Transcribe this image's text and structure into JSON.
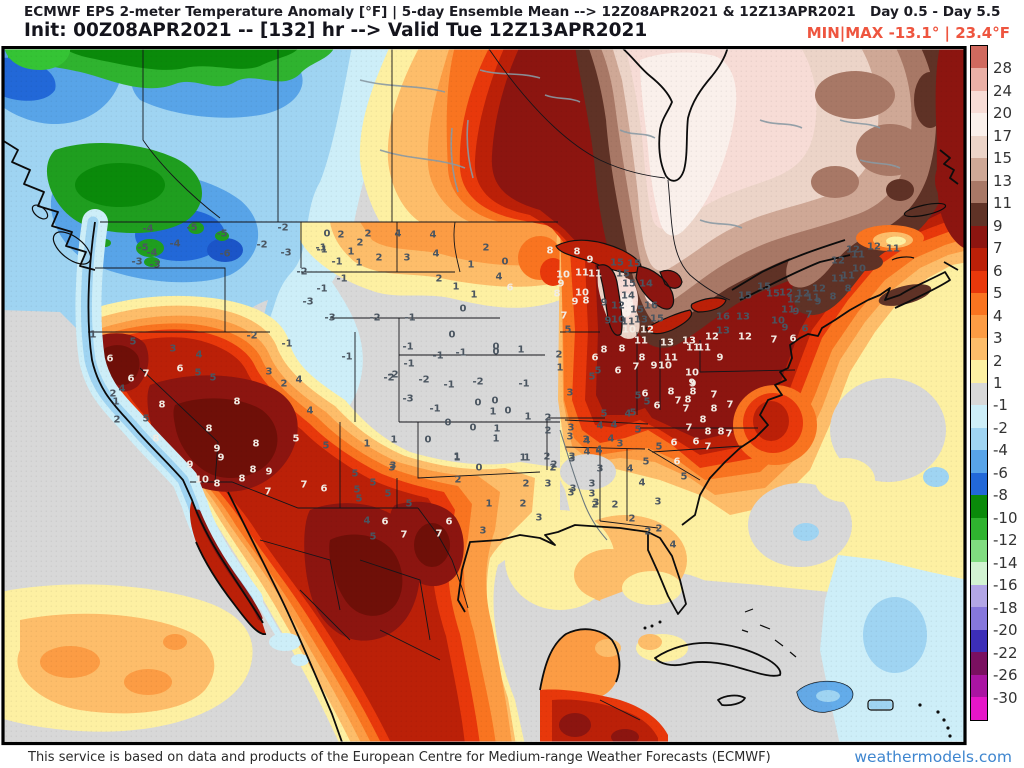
{
  "header": {
    "title_line1": "ECMWF EPS 2-meter Temperature Anomaly [°F] | 5-day Ensemble Mean --> 12Z08APR2021 & 12Z13APR2021   Day 0.5 - Day 5.5",
    "title_line2": "Init: 00Z08APR2021 -- [132] hr --> Valid Tue 12Z13APR2021",
    "minmax_label": "MIN|MAX -13.1° | 23.4°F",
    "minmax_color": "#ee553f"
  },
  "footer": {
    "disclaimer": "This service is based on data and products of the European Centre for Medium-range Weather Forecasts (ECMWF)",
    "brand": "weathermodels.com",
    "brand_color": "#3f86cf"
  },
  "colorbar": {
    "labels": [
      "28",
      "24",
      "20",
      "17",
      "15",
      "13",
      "11",
      "9",
      "7",
      "6",
      "5",
      "4",
      "3",
      "2",
      "1",
      "-1",
      "-2",
      "-4",
      "-6",
      "-8",
      "-10",
      "-12",
      "-14",
      "-16",
      "-18",
      "-20",
      "-22",
      "-26",
      "-30"
    ],
    "colors": [
      "#d0695e",
      "#eab0a6",
      "#f7dcd6",
      "#faf0eb",
      "#ecd4c8",
      "#cfa896",
      "#a87866",
      "#5f3226",
      "#8c1510",
      "#bb2008",
      "#e8380b",
      "#f97420",
      "#fc9c44",
      "#fdbd6a",
      "#fdf0a2",
      "#d8d8d8",
      "#cdeef8",
      "#9fd4f2",
      "#58a4e8",
      "#2268d8",
      "#0a8a0a",
      "#2fb32f",
      "#80dc80",
      "#d2f3d2",
      "#b2a6e6",
      "#8677dc",
      "#3c2eb8",
      "#7a1060",
      "#aa14a2",
      "#e616c8"
    ]
  },
  "map": {
    "value_color_dark": "#4a5560",
    "value_color_light": "#f2ece4",
    "stations": [
      [
        -4,
        148,
        228,
        0
      ],
      [
        -5,
        143,
        247,
        0
      ],
      [
        -4,
        152,
        252,
        0
      ],
      [
        -3,
        137,
        261,
        0
      ],
      [
        -4,
        175,
        243,
        0
      ],
      [
        -5,
        192,
        227,
        0
      ],
      [
        -5,
        222,
        233,
        0
      ],
      [
        -6,
        225,
        253,
        0
      ],
      [
        -2,
        262,
        244,
        0
      ],
      [
        -3,
        286,
        252,
        0
      ],
      [
        -2,
        283,
        227,
        0
      ],
      [
        -1,
        321,
        247,
        0
      ],
      [
        -3,
        155,
        264,
        0
      ],
      [
        -2,
        252,
        335,
        0
      ],
      [
        -1,
        287,
        343,
        0
      ],
      [
        0,
        327,
        233,
        0
      ],
      [
        2,
        341,
        234,
        0
      ],
      [
        2,
        368,
        233,
        0
      ],
      [
        4,
        398,
        233,
        0
      ],
      [
        4,
        433,
        234,
        0
      ],
      [
        2,
        360,
        242,
        0
      ],
      [
        -1,
        322,
        249,
        0
      ],
      [
        1,
        351,
        251,
        0
      ],
      [
        2,
        379,
        257,
        0
      ],
      [
        3,
        407,
        257,
        0
      ],
      [
        4,
        436,
        253,
        0
      ],
      [
        1,
        471,
        264,
        0
      ],
      [
        -1,
        337,
        261,
        0
      ],
      [
        1,
        359,
        262,
        0
      ],
      [
        -2,
        302,
        271,
        0
      ],
      [
        -1,
        342,
        278,
        0
      ],
      [
        -1,
        322,
        288,
        0
      ],
      [
        2,
        439,
        278,
        0
      ],
      [
        1,
        456,
        286,
        0
      ],
      [
        -3,
        308,
        301,
        0
      ],
      [
        -3,
        330,
        317,
        0
      ],
      [
        -2,
        375,
        317,
        0
      ],
      [
        -1,
        410,
        317,
        0
      ],
      [
        1,
        474,
        294,
        0
      ],
      [
        0,
        463,
        308,
        0
      ],
      [
        4,
        499,
        276,
        0
      ],
      [
        6,
        510,
        287,
        1
      ],
      [
        0,
        505,
        261,
        0
      ],
      [
        2,
        486,
        247,
        0
      ],
      [
        -1,
        347,
        356,
        0
      ],
      [
        -2,
        389,
        377,
        0
      ],
      [
        0,
        452,
        334,
        0
      ],
      [
        0,
        496,
        351,
        0
      ],
      [
        1,
        521,
        349,
        0
      ],
      [
        -1,
        408,
        346,
        0
      ],
      [
        0,
        496,
        346,
        0
      ],
      [
        2,
        559,
        354,
        0
      ],
      [
        -1,
        438,
        355,
        0
      ],
      [
        -1,
        461,
        352,
        0
      ],
      [
        -1,
        409,
        363,
        0
      ],
      [
        1,
        560,
        367,
        0
      ],
      [
        -2,
        393,
        374,
        0
      ],
      [
        -2,
        424,
        379,
        0
      ],
      [
        -1,
        449,
        384,
        0
      ],
      [
        -2,
        478,
        381,
        0
      ],
      [
        -1,
        524,
        383,
        0
      ],
      [
        3,
        570,
        392,
        0
      ],
      [
        -3,
        408,
        398,
        0
      ],
      [
        -1,
        435,
        408,
        0
      ],
      [
        0,
        478,
        402,
        0
      ],
      [
        0,
        495,
        400,
        0
      ],
      [
        1,
        493,
        411,
        0
      ],
      [
        0,
        508,
        410,
        0
      ],
      [
        1,
        528,
        416,
        0
      ],
      [
        2,
        548,
        417,
        0
      ],
      [
        0,
        448,
        422,
        0
      ],
      [
        0,
        473,
        427,
        0
      ],
      [
        1,
        497,
        428,
        0
      ],
      [
        2,
        548,
        430,
        0
      ],
      [
        3,
        570,
        436,
        0
      ],
      [
        1,
        394,
        439,
        0
      ],
      [
        0,
        428,
        439,
        0
      ],
      [
        1,
        496,
        438,
        0
      ],
      [
        3,
        586,
        439,
        0
      ],
      [
        1,
        523,
        457,
        0
      ],
      [
        1,
        457,
        457,
        0
      ],
      [
        3,
        392,
        467,
        0
      ],
      [
        0,
        479,
        467,
        0
      ],
      [
        2,
        553,
        467,
        0
      ],
      [
        1,
        93,
        334,
        0
      ],
      [
        5,
        133,
        341,
        0
      ],
      [
        6,
        110,
        358,
        1
      ],
      [
        3,
        173,
        348,
        0
      ],
      [
        4,
        199,
        354,
        0
      ],
      [
        6,
        131,
        378,
        1
      ],
      [
        7,
        146,
        373,
        1
      ],
      [
        4,
        122,
        388,
        0
      ],
      [
        2,
        113,
        393,
        0
      ],
      [
        1,
        116,
        401,
        0
      ],
      [
        2,
        117,
        419,
        0
      ],
      [
        5,
        146,
        418,
        0
      ],
      [
        8,
        162,
        404,
        1
      ],
      [
        6,
        180,
        368,
        1
      ],
      [
        5,
        198,
        372,
        0
      ],
      [
        5,
        213,
        377,
        0
      ],
      [
        8,
        237,
        401,
        1
      ],
      [
        8,
        209,
        428,
        1
      ],
      [
        9,
        217,
        448,
        1
      ],
      [
        9,
        221,
        457,
        1
      ],
      [
        8,
        156,
        438,
        1
      ],
      [
        9,
        190,
        464,
        1
      ],
      [
        10,
        202,
        479,
        1
      ],
      [
        8,
        217,
        483,
        1
      ],
      [
        8,
        256,
        443,
        1
      ],
      [
        8,
        253,
        469,
        1
      ],
      [
        9,
        269,
        471,
        1
      ],
      [
        8,
        242,
        478,
        1
      ],
      [
        7,
        268,
        491,
        1
      ],
      [
        7,
        304,
        484,
        1
      ],
      [
        5,
        296,
        438,
        1
      ],
      [
        3,
        269,
        371,
        0
      ],
      [
        2,
        284,
        383,
        0
      ],
      [
        4,
        299,
        379,
        0
      ],
      [
        4,
        310,
        410,
        0
      ],
      [
        5,
        326,
        445,
        0
      ],
      [
        1,
        367,
        443,
        0
      ],
      [
        3,
        393,
        465,
        0
      ],
      [
        5,
        355,
        473,
        0
      ],
      [
        6,
        324,
        488,
        1
      ],
      [
        5,
        357,
        489,
        0
      ],
      [
        5,
        373,
        482,
        0
      ],
      [
        5,
        388,
        493,
        0
      ],
      [
        5,
        359,
        498,
        0
      ],
      [
        5,
        409,
        503,
        0
      ],
      [
        4,
        367,
        520,
        0
      ],
      [
        6,
        385,
        521,
        1
      ],
      [
        5,
        373,
        536,
        0
      ],
      [
        7,
        439,
        533,
        1
      ],
      [
        7,
        404,
        534,
        1
      ],
      [
        6,
        449,
        521,
        1
      ],
      [
        2,
        458,
        479,
        0
      ],
      [
        1,
        457,
        456,
        0
      ],
      [
        1,
        489,
        503,
        0
      ],
      [
        3,
        483,
        530,
        0
      ],
      [
        1,
        527,
        457,
        0
      ],
      [
        2,
        526,
        483,
        0
      ],
      [
        2,
        547,
        456,
        0
      ],
      [
        3,
        572,
        456,
        0
      ],
      [
        2,
        554,
        464,
        0
      ],
      [
        3,
        548,
        483,
        0
      ],
      [
        3,
        592,
        483,
        0
      ],
      [
        3,
        571,
        492,
        0
      ],
      [
        2,
        523,
        503,
        0
      ],
      [
        3,
        539,
        517,
        0
      ],
      [
        4,
        587,
        451,
        0
      ],
      [
        4,
        599,
        449,
        0
      ],
      [
        3,
        596,
        502,
        0
      ],
      [
        8,
        671,
        391,
        1
      ],
      [
        9,
        693,
        383,
        1
      ],
      [
        8,
        693,
        391,
        1
      ],
      [
        7,
        714,
        394,
        1
      ],
      [
        7,
        678,
        400,
        1
      ],
      [
        8,
        688,
        399,
        1
      ],
      [
        7,
        686,
        408,
        1
      ],
      [
        8,
        714,
        408,
        1
      ],
      [
        7,
        730,
        404,
        1
      ],
      [
        6,
        645,
        393,
        1
      ],
      [
        5,
        638,
        395,
        0
      ],
      [
        5,
        647,
        401,
        0
      ],
      [
        6,
        657,
        405,
        1
      ],
      [
        4,
        628,
        413,
        0
      ],
      [
        5,
        633,
        412,
        0
      ],
      [
        5,
        604,
        413,
        0
      ],
      [
        8,
        703,
        419,
        1
      ],
      [
        7,
        689,
        427,
        1
      ],
      [
        8,
        708,
        431,
        1
      ],
      [
        8,
        721,
        431,
        1
      ],
      [
        7,
        729,
        433,
        1
      ],
      [
        4,
        600,
        425,
        0
      ],
      [
        4,
        614,
        424,
        0
      ],
      [
        5,
        638,
        429,
        0
      ],
      [
        3,
        571,
        427,
        0
      ],
      [
        4,
        587,
        440,
        0
      ],
      [
        4,
        611,
        438,
        0
      ],
      [
        3,
        620,
        443,
        0
      ],
      [
        5,
        659,
        446,
        0
      ],
      [
        6,
        674,
        442,
        1
      ],
      [
        6,
        696,
        441,
        1
      ],
      [
        7,
        708,
        446,
        1
      ],
      [
        4,
        599,
        450,
        0
      ],
      [
        3,
        572,
        458,
        0
      ],
      [
        3,
        600,
        468,
        0
      ],
      [
        4,
        630,
        468,
        0
      ],
      [
        5,
        646,
        461,
        0
      ],
      [
        6,
        677,
        461,
        1
      ],
      [
        5,
        684,
        476,
        0
      ],
      [
        4,
        642,
        482,
        0
      ],
      [
        3,
        573,
        488,
        0
      ],
      [
        3,
        592,
        493,
        0
      ],
      [
        2,
        615,
        504,
        0
      ],
      [
        3,
        658,
        501,
        0
      ],
      [
        2,
        595,
        504,
        0
      ],
      [
        2,
        632,
        518,
        0
      ],
      [
        2,
        648,
        531,
        0
      ],
      [
        2,
        659,
        528,
        0
      ],
      [
        4,
        673,
        544,
        0
      ],
      [
        8,
        550,
        250,
        1
      ],
      [
        8,
        577,
        251,
        1
      ],
      [
        9,
        590,
        259,
        1
      ],
      [
        15,
        617,
        262,
        0
      ],
      [
        15,
        634,
        263,
        0
      ],
      [
        10,
        563,
        274,
        1
      ],
      [
        11,
        582,
        272,
        1
      ],
      [
        11,
        595,
        273,
        1
      ],
      [
        15,
        623,
        273,
        0
      ],
      [
        9,
        561,
        283,
        1
      ],
      [
        15,
        629,
        283,
        0
      ],
      [
        14,
        646,
        283,
        0
      ],
      [
        8,
        557,
        293,
        1
      ],
      [
        10,
        582,
        292,
        1
      ],
      [
        14,
        628,
        295,
        0
      ],
      [
        9,
        575,
        301,
        1
      ],
      [
        8,
        586,
        300,
        1
      ],
      [
        9,
        604,
        302,
        0
      ],
      [
        12,
        618,
        305,
        0
      ],
      [
        16,
        651,
        305,
        0
      ],
      [
        15,
        637,
        309,
        0
      ],
      [
        7,
        564,
        315,
        1
      ],
      [
        9,
        608,
        320,
        0
      ],
      [
        10,
        618,
        319,
        0
      ],
      [
        11,
        628,
        321,
        0
      ],
      [
        13,
        641,
        319,
        0
      ],
      [
        15,
        657,
        318,
        0
      ],
      [
        5,
        568,
        329,
        0
      ],
      [
        10,
        629,
        329,
        1
      ],
      [
        12,
        647,
        329,
        1
      ],
      [
        11,
        641,
        340,
        1
      ],
      [
        13,
        667,
        342,
        1
      ],
      [
        8,
        604,
        349,
        1
      ],
      [
        8,
        622,
        348,
        1
      ],
      [
        6,
        595,
        357,
        1
      ],
      [
        8,
        642,
        357,
        1
      ],
      [
        11,
        671,
        357,
        1
      ],
      [
        5,
        598,
        370,
        0
      ],
      [
        6,
        618,
        370,
        1
      ],
      [
        7,
        636,
        366,
        1
      ],
      [
        9,
        654,
        365,
        1
      ],
      [
        10,
        665,
        365,
        1
      ],
      [
        5,
        592,
        376,
        0
      ],
      [
        13,
        689,
        340,
        1
      ],
      [
        12,
        712,
        336,
        1
      ],
      [
        11,
        693,
        347,
        1
      ],
      [
        11,
        704,
        347,
        1
      ],
      [
        9,
        720,
        357,
        1
      ],
      [
        10,
        692,
        372,
        1
      ],
      [
        9,
        692,
        382,
        1
      ],
      [
        13,
        723,
        330,
        0
      ],
      [
        16,
        723,
        316,
        0
      ],
      [
        13,
        743,
        316,
        0
      ],
      [
        12,
        745,
        336,
        1
      ],
      [
        12,
        853,
        249,
        0
      ],
      [
        11,
        858,
        254,
        0
      ],
      [
        12,
        838,
        260,
        0
      ],
      [
        10,
        859,
        268,
        0
      ],
      [
        11,
        838,
        278,
        0
      ],
      [
        11,
        848,
        275,
        0
      ],
      [
        12,
        819,
        288,
        0
      ],
      [
        8,
        848,
        288,
        0
      ],
      [
        15,
        764,
        286,
        0
      ],
      [
        15,
        773,
        293,
        0
      ],
      [
        12,
        786,
        292,
        0
      ],
      [
        12,
        803,
        293,
        0
      ],
      [
        12,
        794,
        299,
        0
      ],
      [
        11,
        813,
        297,
        0
      ],
      [
        8,
        833,
        296,
        0
      ],
      [
        9,
        818,
        301,
        0
      ],
      [
        11,
        788,
        309,
        0
      ],
      [
        9,
        796,
        311,
        0
      ],
      [
        7,
        809,
        314,
        0
      ],
      [
        10,
        778,
        320,
        0
      ],
      [
        9,
        785,
        327,
        0
      ],
      [
        6,
        805,
        328,
        0
      ],
      [
        6,
        793,
        338,
        1
      ],
      [
        7,
        774,
        339,
        1
      ],
      [
        12,
        874,
        246,
        0
      ],
      [
        11,
        893,
        248,
        0
      ],
      [
        15,
        745,
        295,
        0
      ]
    ]
  }
}
